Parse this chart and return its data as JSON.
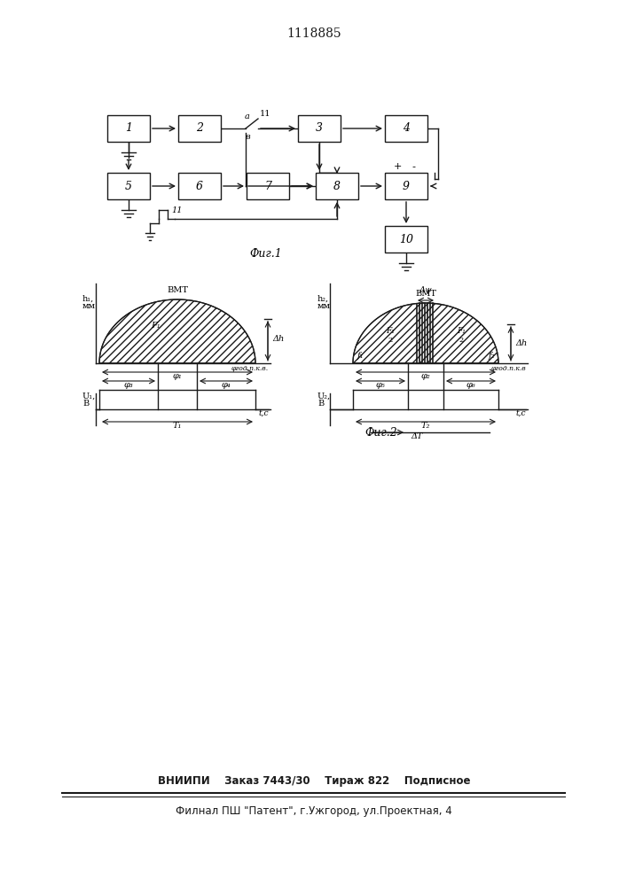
{
  "title": "1118885",
  "title_fontsize": 10,
  "line_color": "#1a1a1a",
  "footer_line1": "ВНИИПИ    Заказ 7443/30    Тираж 822    Подписное",
  "footer_line2": "Филнал ПШ \"Патент\", г.Ужгород, ул.Проектная, 4",
  "fig1_label": "Фиг.1",
  "fig2_label": "Фиг.2"
}
